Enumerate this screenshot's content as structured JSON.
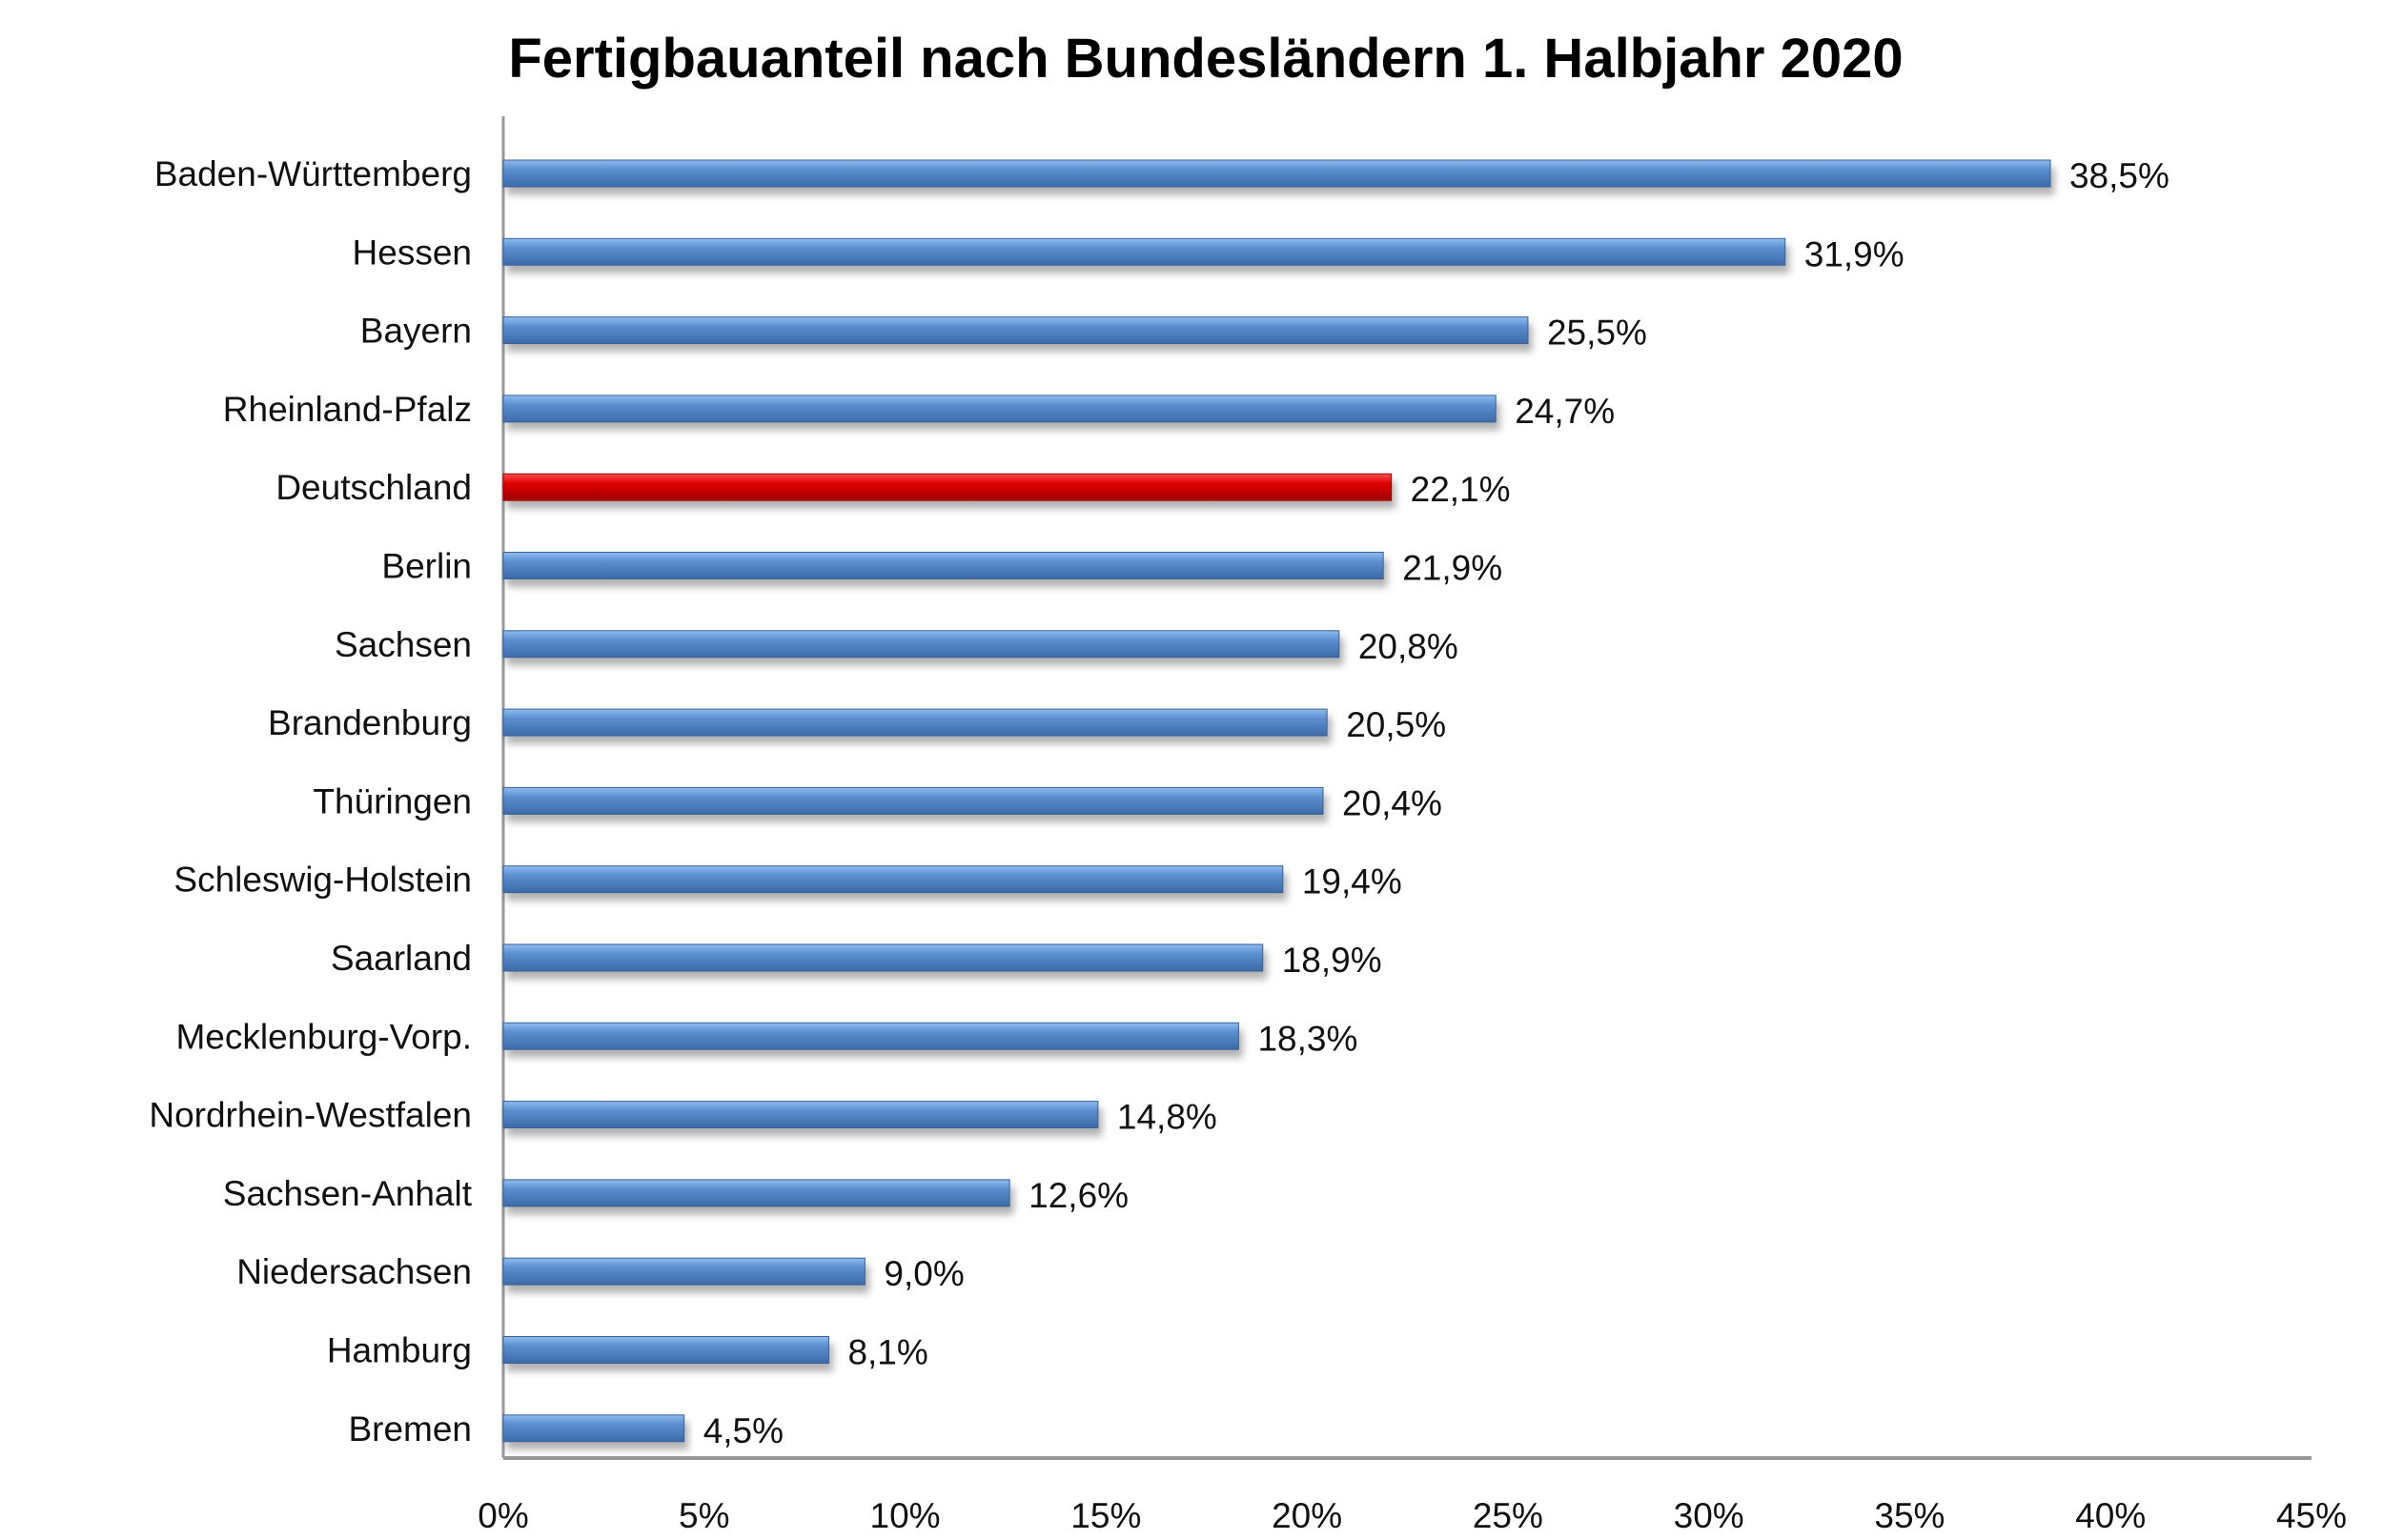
{
  "chart_data": {
    "type": "bar",
    "orientation": "horizontal",
    "title": "Fertigbauanteil nach Bundesländern 1. Halbjahr 2020",
    "categories": [
      "Baden-Württemberg",
      "Hessen",
      "Bayern",
      "Rheinland-Pfalz",
      "Deutschland",
      "Berlin",
      "Sachsen",
      "Brandenburg",
      "Thüringen",
      "Schleswig-Holstein",
      "Saarland",
      "Mecklenburg-Vorp.",
      "Nordrhein-Westfalen",
      "Sachsen-Anhalt",
      "Niedersachsen",
      "Hamburg",
      "Bremen"
    ],
    "values": [
      38.5,
      31.9,
      25.5,
      24.7,
      22.1,
      21.9,
      20.8,
      20.5,
      20.4,
      19.4,
      18.9,
      18.3,
      14.8,
      12.6,
      9.0,
      8.1,
      4.5
    ],
    "data_labels": [
      "38,5%",
      "31,9%",
      "25,5%",
      "24,7%",
      "22,1%",
      "21,9%",
      "20,8%",
      "20,5%",
      "20,4%",
      "19,4%",
      "18,9%",
      "18,3%",
      "14,8%",
      "12,6%",
      "9,0%",
      "8,1%",
      "4,5%"
    ],
    "highlight": "Deutschland",
    "colors": {
      "bar": "#4f81bd",
      "highlight": "#d00000"
    },
    "xlim": [
      0,
      45
    ],
    "xticks": [
      "0%",
      "5%",
      "10%",
      "15%",
      "20%",
      "25%",
      "30%",
      "35%",
      "40%",
      "45%"
    ],
    "xlabel": "",
    "ylabel": "",
    "grid": false
  }
}
